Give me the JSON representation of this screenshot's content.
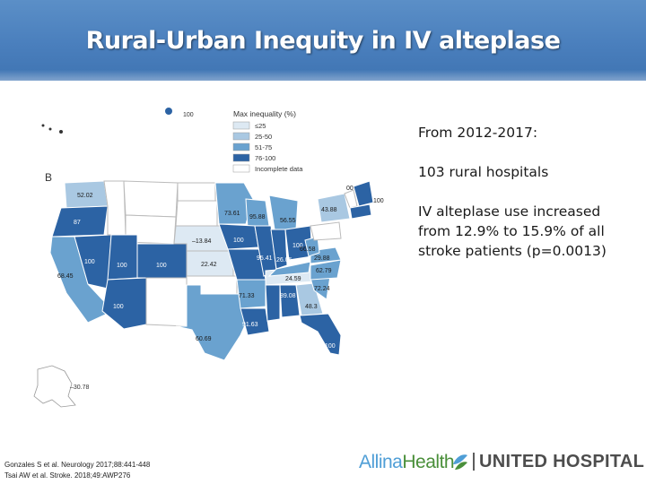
{
  "slide": {
    "title": "Rural-Urban Inequity in IV alteplase"
  },
  "map": {
    "panel_label": "B",
    "legend": {
      "title": "Max inequality (%)",
      "items": [
        {
          "label": "≤25",
          "color": "#dde9f3"
        },
        {
          "label": "25-50",
          "color": "#a9c8e2"
        },
        {
          "label": "51-75",
          "color": "#6aa2cf"
        },
        {
          "label": "76-100",
          "color": "#2c63a4"
        },
        {
          "label": "Incomplete data",
          "color": "#ffffff"
        }
      ]
    },
    "state_values": {
      "wa": "52.02",
      "or": "87",
      "ca": "68.45",
      "nv": "100",
      "ut": "100",
      "co": "100",
      "az": "100",
      "tx": "60.69",
      "ne": "–13.84",
      "ks": "22.42",
      "mn": "73.61",
      "wi": "95.88",
      "mi": "56.55",
      "ia": "100",
      "il": "95.41",
      "in": "26.05",
      "oh": "100",
      "ar": "71.33",
      "la": "91.63",
      "tn": "24.59",
      "al": "89.08",
      "ga": "48.3",
      "sc": "72.24",
      "nc": "62.79",
      "va": "29.88",
      "wv": "66.58",
      "ny": "43.88",
      "vt": "00",
      "ma": "100",
      "fl": "100",
      "ak": "–30.78",
      "hi": "100"
    }
  },
  "side_text": {
    "line1": "From 2012-2017:",
    "line2": "103 rural hospitals",
    "line3": "IV alteplase use increased from 12.9% to 15.9% of all stroke patients (p=0.0013)"
  },
  "references": {
    "ref1": "Gonzales S et al. Neurology 2017;88:441-448",
    "ref2": "Tsai AW et al. Stroke. 2018;49:AWP276"
  },
  "logo": {
    "allina_part1": "Allina",
    "allina_part2": "Health",
    "united": "UNITED HOSPITAL"
  },
  "colors": {
    "header_blue": "#4a7fbd",
    "le25": "#dde9f3",
    "c25_50": "#a9c8e2",
    "c51_75": "#6aa2cf",
    "c76_100": "#2c63a4"
  }
}
